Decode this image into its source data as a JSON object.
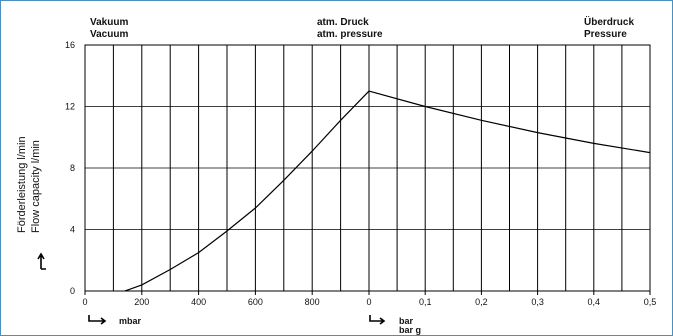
{
  "regions": {
    "left": {
      "line1": "Vakuum",
      "line2": "Vacuum"
    },
    "center": {
      "line1": "atm. Druck",
      "line2": "atm. pressure"
    },
    "right": {
      "line1": "Überdruck",
      "line2": "Pressure"
    }
  },
  "ylabel": {
    "line1": "Förderleistung  l/min",
    "line2": "Flow capacity l/min"
  },
  "units": {
    "vacuum": "mbar",
    "pressure_line1": "bar",
    "pressure_line2": "bar g"
  },
  "colors": {
    "curve": "#000000",
    "grid": "#000000",
    "frame": "#4a90c0"
  },
  "icons": {
    "y_arrow": "arrow-up-icon",
    "x_arrow": "arrow-right-icon"
  },
  "chart_data": {
    "type": "line",
    "yticks": [
      "0",
      "4",
      "8",
      "12",
      "16"
    ],
    "ylim": [
      0,
      16
    ],
    "vacuum_axis": {
      "unit": "mbar",
      "ticks": [
        "0",
        "200",
        "400",
        "600",
        "800"
      ],
      "xlim": [
        0,
        1000
      ]
    },
    "pressure_axis": {
      "unit": "bar / bar g",
      "ticks": [
        "0",
        "0,1",
        "0,2",
        "0,3",
        "0,4",
        "0,5"
      ],
      "xlim": [
        0,
        0.5
      ]
    },
    "grid": true,
    "series": [
      {
        "segment": "vacuum",
        "x": [
          140,
          200,
          300,
          400,
          500,
          600,
          700,
          800,
          900,
          1000
        ],
        "y": [
          0,
          0.4,
          1.4,
          2.5,
          3.9,
          5.4,
          7.2,
          9.1,
          11.1,
          13
        ]
      },
      {
        "segment": "pressure",
        "x": [
          0,
          0.1,
          0.2,
          0.3,
          0.4,
          0.5
        ],
        "y": [
          13,
          12,
          11.1,
          10.3,
          9.6,
          9
        ]
      }
    ]
  }
}
